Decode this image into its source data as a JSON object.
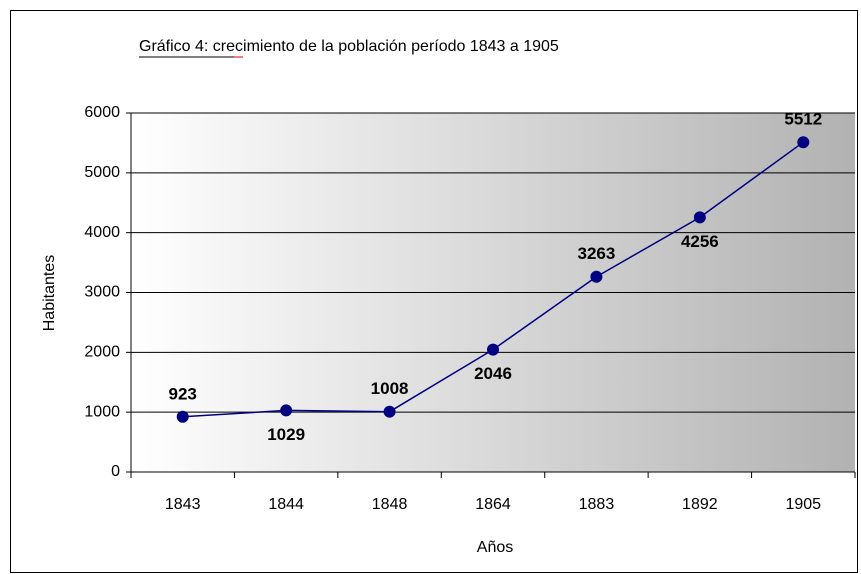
{
  "chart_data": {
    "type": "line",
    "title": "Gráfico 4: crecimiento de la población  período 1843  a 1905",
    "x_label": "Años",
    "y_label": "Habitantes",
    "categories": [
      "1843",
      "1844",
      "1848",
      "1864",
      "1883",
      "1892",
      "1905"
    ],
    "series": [
      {
        "name": "Habitantes",
        "color": "#000080",
        "values": [
          923,
          1029,
          1008,
          2046,
          3263,
          4256,
          5512
        ]
      }
    ],
    "ylim": [
      0,
      6000
    ],
    "yticks": [
      0,
      1000,
      2000,
      3000,
      4000,
      5000,
      6000
    ],
    "grid": true
  }
}
